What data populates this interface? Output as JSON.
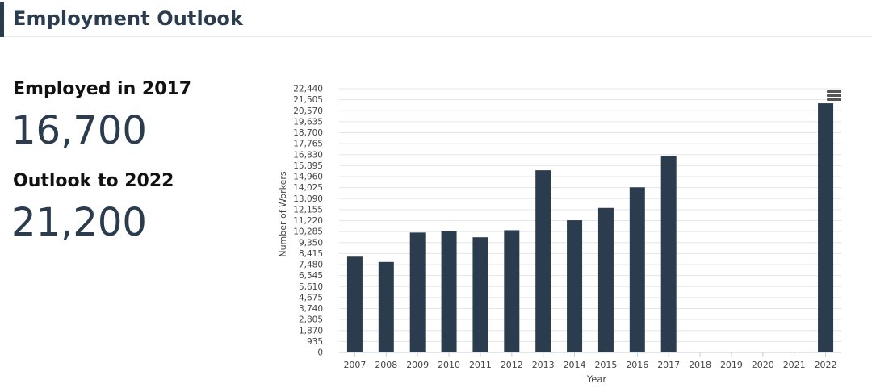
{
  "header": {
    "title": "Employment Outlook"
  },
  "stats": {
    "employed_label": "Employed in 2017",
    "employed_value": "16,700",
    "outlook_label": "Outlook to 2022",
    "outlook_value": "21,200"
  },
  "colors": {
    "bar": "#2b3c4e",
    "accent": "#2b3c4e",
    "grid": "#e6e6e6"
  },
  "menu": {
    "icon": "hamburger-menu-icon"
  },
  "chart_data": {
    "type": "bar",
    "title": "",
    "xlabel": "Year",
    "ylabel": "Number of Workers",
    "categories": [
      "2007",
      "2008",
      "2009",
      "2010",
      "2011",
      "2012",
      "2013",
      "2014",
      "2015",
      "2016",
      "2017",
      "2018",
      "2019",
      "2020",
      "2021",
      "2022"
    ],
    "values": [
      8150,
      7700,
      10200,
      10300,
      9800,
      10400,
      15500,
      11250,
      12300,
      14050,
      16700,
      null,
      null,
      null,
      null,
      21200
    ],
    "yticks": [
      "0",
      "935",
      "1,870",
      "2,805",
      "3,740",
      "4,675",
      "5,610",
      "6,545",
      "7,480",
      "8,415",
      "9,350",
      "10,285",
      "11,220",
      "12,155",
      "13,090",
      "14,025",
      "14,960",
      "15,895",
      "16,830",
      "17,765",
      "18,700",
      "19,635",
      "20,570",
      "21,505",
      "22,440"
    ],
    "ylim": [
      0,
      22440
    ],
    "grid": true,
    "legend": "none"
  }
}
